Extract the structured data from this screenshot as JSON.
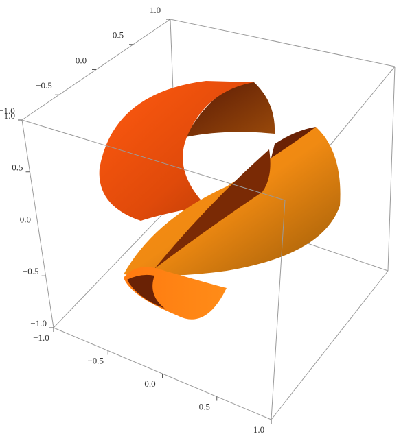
{
  "chart_data": {
    "type": "surface3d",
    "xlim": [
      -1,
      1
    ],
    "xticks": [
      {
        "value": -1,
        "label": "−1.0"
      },
      {
        "value": -0.5,
        "label": "−0.5"
      },
      {
        "value": 0,
        "label": "0.0"
      },
      {
        "value": 0.5,
        "label": "0.5"
      },
      {
        "value": 1,
        "label": "1.0"
      }
    ],
    "ylim": [
      -1,
      1
    ],
    "yticks": [
      {
        "value": -1,
        "label": "−1.0"
      },
      {
        "value": -0.5,
        "label": "−0.5"
      },
      {
        "value": 0,
        "label": "0.0"
      },
      {
        "value": 0.5,
        "label": "0.5"
      },
      {
        "value": 1,
        "label": "1.0"
      }
    ],
    "zlim": [
      -1,
      1
    ],
    "zticks": [
      {
        "value": -1,
        "label": "−1.0"
      },
      {
        "value": -0.5,
        "label": "−0.5"
      },
      {
        "value": 0,
        "label": "0.0"
      },
      {
        "value": 0.5,
        "label": "0.5"
      },
      {
        "value": 1,
        "label": "1.0"
      }
    ],
    "color": "#ff7a10"
  }
}
